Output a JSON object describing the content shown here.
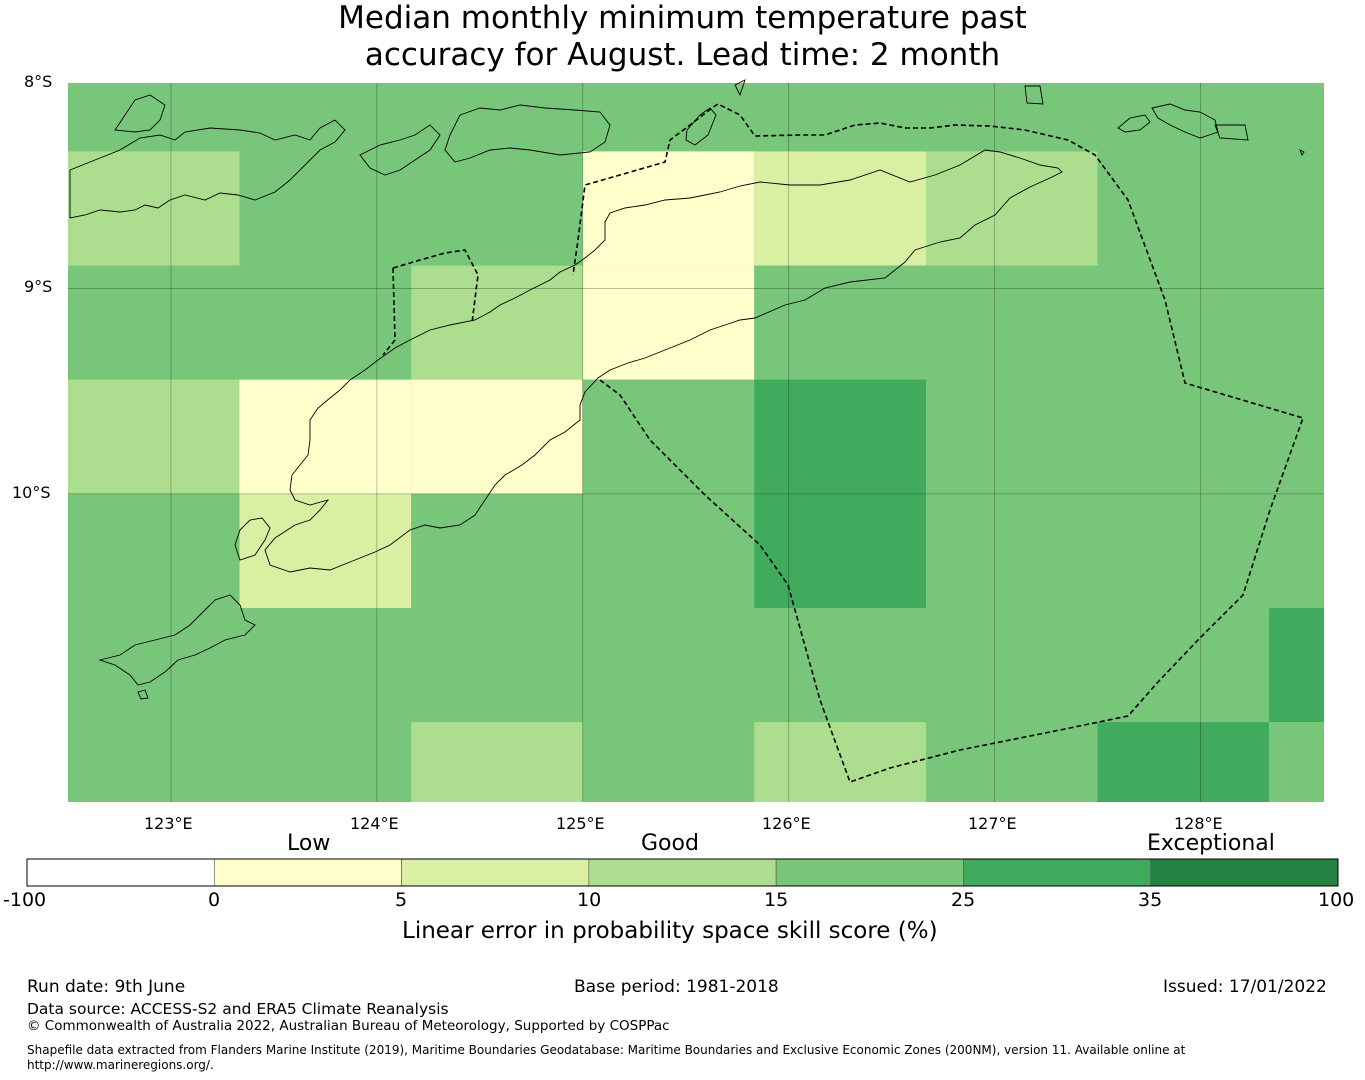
{
  "title": {
    "line1": "Median monthly minimum temperature past",
    "line2": "accuracy for August. Lead time: 2 month"
  },
  "map": {
    "lat_labels": [
      "8°S",
      "9°S",
      "10°S"
    ],
    "lon_labels": [
      "123°E",
      "124°E",
      "125°E",
      "126°E",
      "127°E",
      "128°E"
    ],
    "extent": {
      "lon_min": 122.5,
      "lon_max": 128.6,
      "lat_min": -11.5,
      "lat_max": -8.0
    },
    "grid_lines": true,
    "boundary_style": "dashed",
    "coastline_color": "#000000",
    "cells": {
      "lon_edges": [
        122.5,
        123.333,
        124.167,
        125.0,
        125.833,
        126.667,
        127.5,
        128.333,
        128.6
      ],
      "lat_edges": [
        -8.0,
        -8.333,
        -8.889,
        -9.444,
        -10.0,
        -10.556,
        -11.111,
        -11.5
      ],
      "values_rows_north_to_south": [
        [
          20,
          20,
          20,
          20,
          20,
          20,
          20,
          20
        ],
        [
          12,
          20,
          20,
          3,
          8,
          12,
          20,
          20
        ],
        [
          20,
          20,
          12,
          3,
          20,
          20,
          20,
          20
        ],
        [
          12,
          3,
          3,
          20,
          30,
          20,
          20,
          20
        ],
        [
          20,
          8,
          20,
          20,
          30,
          20,
          20,
          20
        ],
        [
          20,
          20,
          20,
          20,
          20,
          20,
          20,
          30
        ],
        [
          20,
          20,
          12,
          20,
          12,
          20,
          30,
          20
        ]
      ]
    }
  },
  "colorbar": {
    "category_labels": [
      "Low",
      "Good",
      "Exceptional"
    ],
    "ticks": [
      "-100",
      "0",
      "5",
      "10",
      "15",
      "25",
      "35",
      "100"
    ],
    "bins": [
      {
        "from": -100,
        "to": 0,
        "color": "#ffffff"
      },
      {
        "from": 0,
        "to": 5,
        "color": "#ffffcc"
      },
      {
        "from": 5,
        "to": 10,
        "color": "#d9f0a3"
      },
      {
        "from": 10,
        "to": 15,
        "color": "#addd8e"
      },
      {
        "from": 15,
        "to": 25,
        "color": "#78c679"
      },
      {
        "from": 25,
        "to": 35,
        "color": "#41ab5d"
      },
      {
        "from": 35,
        "to": 100,
        "color": "#238443"
      }
    ],
    "label": "Linear error in probability space skill score (%)"
  },
  "footer": {
    "run_date": "Run date: 9th June",
    "base_period": "Base period: 1981-2018",
    "issued": "Issued: 17/01/2022",
    "data_source": "Data source: ACCESS-S2 and ERA5 Climate Reanalysis",
    "copyright": "© Commonwealth of Australia 2022, Australian Bureau of Meteorology, Supported by COSPPac",
    "shapefile_line1": "Shapefile data extracted from Flanders Marine Institute (2019), Maritime Boundaries Geodatabase: Maritime Boundaries and Exclusive Economic Zones (200NM), version 11. Available online at",
    "shapefile_line2": "http://www.marineregions.org/."
  }
}
